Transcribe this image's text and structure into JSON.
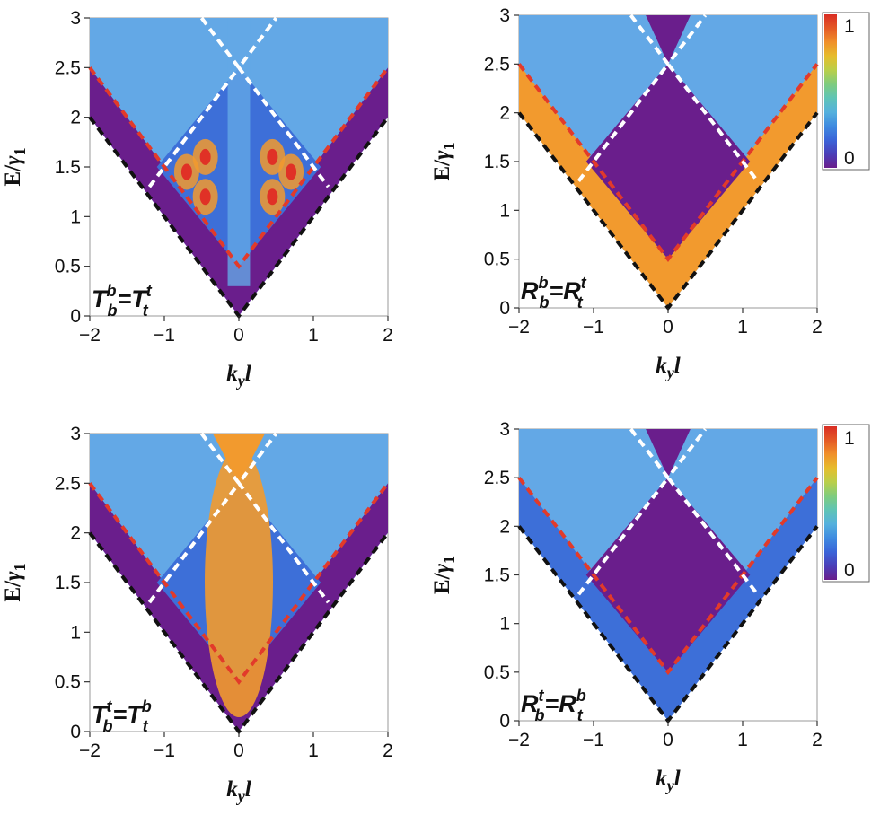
{
  "colors": {
    "purple": "#6a1e8c",
    "blue": "#3d6fd8",
    "lightblue": "#63a8e6",
    "orange": "#f29a2e",
    "red": "#e03126",
    "white_dash": "#ffffff",
    "red_dash": "#e23a2a",
    "black_dash": "#111111"
  },
  "colorbar": {
    "top_label": "1",
    "bottom_label": "0",
    "stops": [
      "#6a1e8c",
      "#4a3fb8",
      "#3a64d8",
      "#3f8be0",
      "#55b1dd",
      "#5fc4b6",
      "#7fcc7e",
      "#b9cf4a",
      "#e6bd2c",
      "#f0902a",
      "#e45a26",
      "#d92d24"
    ]
  },
  "chart_data": [
    {
      "type": "heatmap",
      "panel": "top-left",
      "annotation": {
        "base1": "T",
        "sub1": "b",
        "sup1": "b",
        "eq": "=",
        "base2": "T",
        "sub2": "t",
        "sup2": "t"
      },
      "xlabel": {
        "main": "k",
        "sub": "y",
        "tail": "l"
      },
      "ylabel": {
        "main": "E/",
        "greek": "γ",
        "sub": "1"
      },
      "xticks": [
        "−2",
        "−1",
        "0",
        "1",
        "2"
      ],
      "yticks": [
        "0",
        "0.5",
        "1",
        "1.5",
        "2",
        "2.5",
        "3"
      ],
      "xlim": [
        -2,
        2
      ],
      "ylim": [
        0,
        3
      ],
      "value_range": [
        0,
        1
      ],
      "boundary_lines": [
        {
          "name": "black",
          "points": [
            [
              -2,
              2
            ],
            [
              0,
              0
            ],
            [
              2,
              2
            ]
          ]
        },
        {
          "name": "red",
          "points": [
            [
              -2,
              2.5
            ],
            [
              0,
              0.5
            ],
            [
              2,
              2.5
            ]
          ]
        },
        {
          "name": "white",
          "points": [
            [
              -1.2,
              1.3
            ],
            [
              0,
              2.5
            ],
            [
              1.2,
              1.3
            ]
          ]
        },
        {
          "name": "white-upper",
          "points": [
            [
              -0.5,
              3
            ],
            [
              0,
              2.5
            ],
            [
              0.5,
              3
            ]
          ]
        }
      ]
    },
    {
      "type": "heatmap",
      "panel": "top-right",
      "annotation": {
        "base1": "R",
        "sub1": "b",
        "sup1": "b",
        "eq": "=",
        "base2": "R",
        "sub2": "t",
        "sup2": "t"
      },
      "xlabel": {
        "main": "k",
        "sub": "y",
        "tail": "l"
      },
      "ylabel": {
        "main": "E/",
        "greek": "γ",
        "sub": "1"
      },
      "xticks": [
        "−2",
        "−1",
        "0",
        "1",
        "2"
      ],
      "yticks": [
        "0",
        "0.5",
        "1",
        "1.5",
        "2",
        "2.5",
        "3"
      ],
      "xlim": [
        -2,
        2
      ],
      "ylim": [
        0,
        3
      ],
      "value_range": [
        0,
        1
      ]
    },
    {
      "type": "heatmap",
      "panel": "bottom-left",
      "annotation": {
        "base1": "T",
        "sub1": "b",
        "sup1": "t",
        "eq": "=",
        "base2": "T",
        "sub2": "t",
        "sup2": "b"
      },
      "xlabel": {
        "main": "k",
        "sub": "y",
        "tail": "l"
      },
      "ylabel": {
        "main": "E/",
        "greek": "γ",
        "sub": "1"
      },
      "xticks": [
        "−2",
        "−1",
        "0",
        "1",
        "2"
      ],
      "yticks": [
        "0",
        "0.5",
        "1",
        "1.5",
        "2",
        "2.5",
        "3"
      ],
      "xlim": [
        -2,
        2
      ],
      "ylim": [
        0,
        3
      ],
      "value_range": [
        0,
        1
      ]
    },
    {
      "type": "heatmap",
      "panel": "bottom-right",
      "annotation": {
        "base1": "R",
        "sub1": "b",
        "sup1": "t",
        "eq": "=",
        "base2": "R",
        "sub2": "t",
        "sup2": "b"
      },
      "xlabel": {
        "main": "k",
        "sub": "y",
        "tail": "l"
      },
      "ylabel": {
        "main": "E/",
        "greek": "γ",
        "sub": "1"
      },
      "xticks": [
        "−2",
        "−1",
        "0",
        "1",
        "2"
      ],
      "yticks": [
        "0",
        "0.5",
        "1",
        "1.5",
        "2",
        "2.5",
        "3"
      ],
      "xlim": [
        -2,
        2
      ],
      "ylim": [
        0,
        3
      ],
      "value_range": [
        0,
        1
      ]
    }
  ]
}
